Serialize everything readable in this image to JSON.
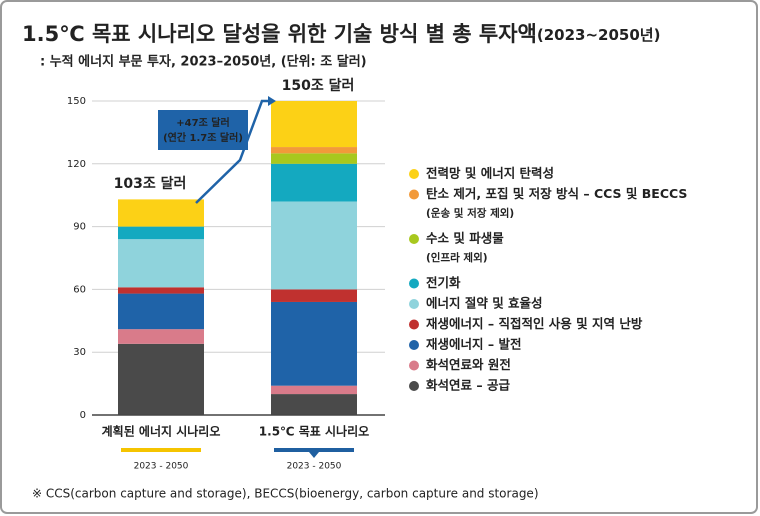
{
  "chart_data": {
    "type": "stacked_bar",
    "title": "1.5℃ 목표 시나리오 달성을 위한 기술 방식 별 총 투자액",
    "title_note": "(2023~2050년)",
    "subtitle": ": 누적 에너지 부문 투자, 2023–2050년, (단위: 조 달러)",
    "categories": [
      "계획된 에너지 시나리오",
      "1.5℃ 목표 시나리오"
    ],
    "periods": [
      "2023 - 2050",
      "2023 - 2050"
    ],
    "period_colors": [
      "#f5c400",
      "#1f5fa0"
    ],
    "total_labels": [
      "103조 달러",
      "150조 달러"
    ],
    "difference_label": "+47조 달러",
    "difference_note": "(연간 1.7조 달러)",
    "ylim": [
      0,
      150
    ],
    "yticks": [
      0,
      30,
      60,
      90,
      120,
      150
    ],
    "grid": true,
    "series": [
      {
        "name": "화석연료 – 공급",
        "color": "#4a4a4a",
        "values": [
          34,
          10
        ]
      },
      {
        "name": "화석연료와 원전",
        "color": "#d97b8a",
        "values": [
          7,
          4
        ]
      },
      {
        "name": "재생에너지 – 발전",
        "color": "#1f63a8",
        "values": [
          17,
          40
        ]
      },
      {
        "name": "재생에너지 – 직접적인 사용 및 지역 난방",
        "color": "#c0312f",
        "values": [
          3,
          6
        ]
      },
      {
        "name": "에너지 절약 및 효율성",
        "color": "#8fd3dc",
        "values": [
          23,
          42
        ]
      },
      {
        "name": "전기화",
        "color": "#14a9c0",
        "values": [
          6,
          18
        ]
      },
      {
        "name": "수소 및 파생물",
        "sublabel": "(인프라 제외)",
        "color": "#a8c81e",
        "values": [
          0,
          5
        ]
      },
      {
        "name": "탄소 제거, 포집 및 저장 방식 – CCS 및 BECCS",
        "sublabel": "(운송 및 저장 제외)",
        "color": "#f29a3a",
        "values": [
          0,
          3
        ]
      },
      {
        "name": "전력망 및 에너지 탄력성",
        "color": "#fcd116",
        "values": [
          13,
          22
        ]
      }
    ],
    "footnote": "※ CCS(carbon capture and storage), BECCS(bioenergy, carbon capture and storage)"
  }
}
